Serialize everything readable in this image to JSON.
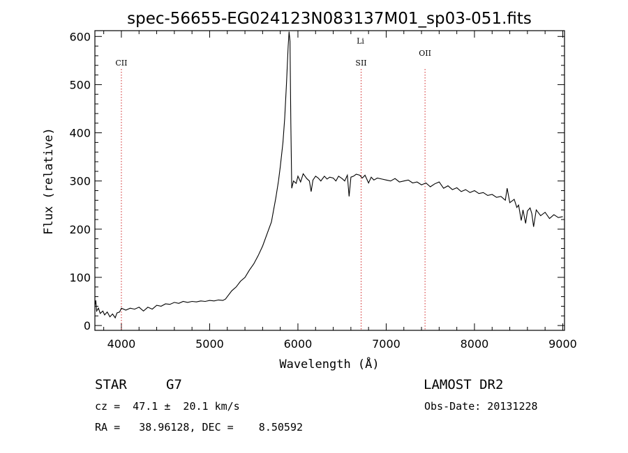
{
  "chart_data": {
    "type": "line",
    "title": "spec-56655-EG024123N083137M01_sp03-051.fits",
    "xlabel": "Wavelength (Å)",
    "ylabel": "Flux (relative)",
    "xlim": [
      3700,
      9020
    ],
    "ylim": [
      -10,
      612
    ],
    "xticks": [
      4000,
      5000,
      6000,
      7000,
      8000,
      9000
    ],
    "yticks": [
      0,
      100,
      200,
      300,
      400,
      500,
      600
    ],
    "line_color": "#000000",
    "marker_color": "#d02020",
    "series": [
      {
        "name": "spectrum",
        "points": [
          [
            3700,
            42
          ],
          [
            3710,
            52
          ],
          [
            3720,
            30
          ],
          [
            3740,
            36
          ],
          [
            3760,
            25
          ],
          [
            3790,
            30
          ],
          [
            3810,
            22
          ],
          [
            3840,
            28
          ],
          [
            3870,
            18
          ],
          [
            3900,
            24
          ],
          [
            3930,
            16
          ],
          [
            3950,
            26
          ],
          [
            3980,
            28
          ],
          [
            4000,
            36
          ],
          [
            4050,
            32
          ],
          [
            4100,
            36
          ],
          [
            4150,
            34
          ],
          [
            4200,
            38
          ],
          [
            4250,
            30
          ],
          [
            4300,
            38
          ],
          [
            4350,
            34
          ],
          [
            4400,
            42
          ],
          [
            4450,
            40
          ],
          [
            4500,
            45
          ],
          [
            4550,
            44
          ],
          [
            4600,
            48
          ],
          [
            4650,
            46
          ],
          [
            4700,
            50
          ],
          [
            4750,
            48
          ],
          [
            4800,
            50
          ],
          [
            4850,
            49
          ],
          [
            4900,
            51
          ],
          [
            4950,
            50
          ],
          [
            5000,
            52
          ],
          [
            5050,
            51
          ],
          [
            5100,
            53
          ],
          [
            5150,
            52
          ],
          [
            5180,
            55
          ],
          [
            5200,
            60
          ],
          [
            5250,
            72
          ],
          [
            5300,
            80
          ],
          [
            5350,
            92
          ],
          [
            5400,
            100
          ],
          [
            5450,
            115
          ],
          [
            5500,
            128
          ],
          [
            5550,
            145
          ],
          [
            5600,
            165
          ],
          [
            5650,
            190
          ],
          [
            5700,
            215
          ],
          [
            5720,
            235
          ],
          [
            5750,
            265
          ],
          [
            5780,
            300
          ],
          [
            5800,
            330
          ],
          [
            5830,
            380
          ],
          [
            5850,
            430
          ],
          [
            5870,
            500
          ],
          [
            5890,
            580
          ],
          [
            5900,
            610
          ],
          [
            5910,
            590
          ],
          [
            5920,
            420
          ],
          [
            5930,
            285
          ],
          [
            5950,
            300
          ],
          [
            5980,
            295
          ],
          [
            6000,
            310
          ],
          [
            6030,
            298
          ],
          [
            6060,
            315
          ],
          [
            6100,
            305
          ],
          [
            6130,
            300
          ],
          [
            6150,
            278
          ],
          [
            6170,
            302
          ],
          [
            6200,
            310
          ],
          [
            6230,
            306
          ],
          [
            6260,
            300
          ],
          [
            6300,
            310
          ],
          [
            6330,
            304
          ],
          [
            6360,
            308
          ],
          [
            6400,
            306
          ],
          [
            6430,
            300
          ],
          [
            6460,
            310
          ],
          [
            6500,
            305
          ],
          [
            6530,
            300
          ],
          [
            6560,
            312
          ],
          [
            6580,
            268
          ],
          [
            6600,
            308
          ],
          [
            6630,
            310
          ],
          [
            6660,
            314
          ],
          [
            6700,
            312
          ],
          [
            6730,
            306
          ],
          [
            6760,
            312
          ],
          [
            6800,
            296
          ],
          [
            6830,
            308
          ],
          [
            6860,
            302
          ],
          [
            6900,
            306
          ],
          [
            6950,
            304
          ],
          [
            7000,
            302
          ],
          [
            7050,
            300
          ],
          [
            7100,
            305
          ],
          [
            7150,
            298
          ],
          [
            7200,
            300
          ],
          [
            7250,
            302
          ],
          [
            7300,
            296
          ],
          [
            7350,
            298
          ],
          [
            7400,
            292
          ],
          [
            7450,
            296
          ],
          [
            7500,
            288
          ],
          [
            7550,
            294
          ],
          [
            7600,
            298
          ],
          [
            7650,
            285
          ],
          [
            7700,
            290
          ],
          [
            7750,
            282
          ],
          [
            7800,
            286
          ],
          [
            7850,
            278
          ],
          [
            7900,
            282
          ],
          [
            7950,
            276
          ],
          [
            8000,
            280
          ],
          [
            8050,
            274
          ],
          [
            8100,
            276
          ],
          [
            8150,
            270
          ],
          [
            8200,
            272
          ],
          [
            8250,
            266
          ],
          [
            8300,
            268
          ],
          [
            8350,
            260
          ],
          [
            8370,
            285
          ],
          [
            8400,
            255
          ],
          [
            8450,
            262
          ],
          [
            8480,
            245
          ],
          [
            8500,
            250
          ],
          [
            8530,
            218
          ],
          [
            8550,
            240
          ],
          [
            8580,
            212
          ],
          [
            8600,
            238
          ],
          [
            8630,
            244
          ],
          [
            8650,
            232
          ],
          [
            8670,
            205
          ],
          [
            8700,
            240
          ],
          [
            8750,
            228
          ],
          [
            8800,
            235
          ],
          [
            8850,
            222
          ],
          [
            8900,
            230
          ],
          [
            8950,
            224
          ],
          [
            9000,
            226
          ]
        ]
      }
    ],
    "spectral_lines": [
      {
        "label": "CII",
        "wavelength": 4000,
        "label_flux": 540
      },
      {
        "label": "SII",
        "wavelength": 6716,
        "label_flux": 540
      },
      {
        "label": "Li",
        "wavelength": 6708,
        "label_flux": 585
      },
      {
        "label": "OII",
        "wavelength": 7440,
        "label_flux": 560
      }
    ]
  },
  "info": {
    "class_type": "STAR",
    "subclass": "G7",
    "survey": "LAMOST DR2",
    "velocity": "cz =  47.1 ±  20.1 km/s",
    "obs_date": "Obs-Date: 20131228",
    "coords": "RA =   38.96128, DEC =    8.50592"
  }
}
